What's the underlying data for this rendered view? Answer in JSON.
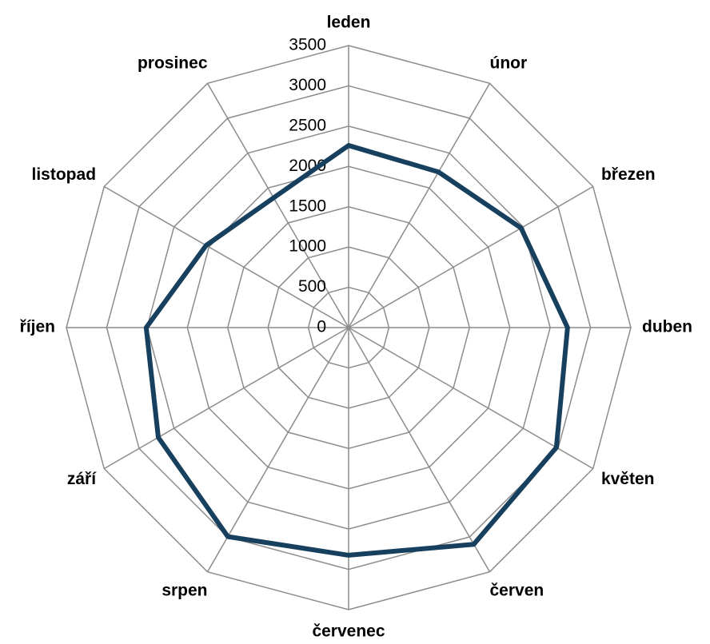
{
  "chart_data": {
    "type": "radar",
    "categories": [
      "leden",
      "únor",
      "březen",
      "duben",
      "květen",
      "červen",
      "červenec",
      "srpen",
      "září",
      "říjen",
      "listopad",
      "prosinec"
    ],
    "series": [
      {
        "color": "#17405f",
        "values": [
          2260,
          2230,
          2470,
          2715,
          2975,
          3105,
          2825,
          2995,
          2725,
          2510,
          2040,
          1860
        ]
      }
    ],
    "ylim": [
      0,
      3500
    ],
    "yticks": [
      0,
      500,
      1000,
      1500,
      2000,
      2500,
      3000,
      3500
    ],
    "grid": true
  }
}
